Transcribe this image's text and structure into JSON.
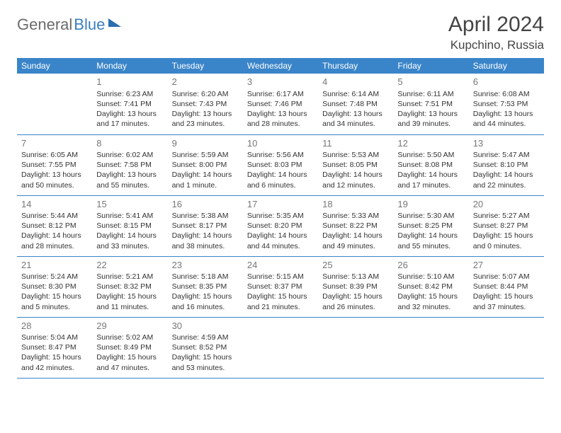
{
  "logo": {
    "part1": "General",
    "part2": "Blue"
  },
  "title": "April 2024",
  "location": "Kupchino, Russia",
  "colors": {
    "header_bg": "#3a85c9",
    "header_text": "#ffffff",
    "rule": "#3a85c9",
    "daynum": "#777777",
    "body_text": "#333333",
    "logo_gray": "#6b6b6b",
    "logo_blue": "#3a7fc2"
  },
  "day_headers": [
    "Sunday",
    "Monday",
    "Tuesday",
    "Wednesday",
    "Thursday",
    "Friday",
    "Saturday"
  ],
  "weeks": [
    [
      null,
      {
        "n": "1",
        "sr": "Sunrise: 6:23 AM",
        "ss": "Sunset: 7:41 PM",
        "dl": "Daylight: 13 hours and 17 minutes."
      },
      {
        "n": "2",
        "sr": "Sunrise: 6:20 AM",
        "ss": "Sunset: 7:43 PM",
        "dl": "Daylight: 13 hours and 23 minutes."
      },
      {
        "n": "3",
        "sr": "Sunrise: 6:17 AM",
        "ss": "Sunset: 7:46 PM",
        "dl": "Daylight: 13 hours and 28 minutes."
      },
      {
        "n": "4",
        "sr": "Sunrise: 6:14 AM",
        "ss": "Sunset: 7:48 PM",
        "dl": "Daylight: 13 hours and 34 minutes."
      },
      {
        "n": "5",
        "sr": "Sunrise: 6:11 AM",
        "ss": "Sunset: 7:51 PM",
        "dl": "Daylight: 13 hours and 39 minutes."
      },
      {
        "n": "6",
        "sr": "Sunrise: 6:08 AM",
        "ss": "Sunset: 7:53 PM",
        "dl": "Daylight: 13 hours and 44 minutes."
      }
    ],
    [
      {
        "n": "7",
        "sr": "Sunrise: 6:05 AM",
        "ss": "Sunset: 7:55 PM",
        "dl": "Daylight: 13 hours and 50 minutes."
      },
      {
        "n": "8",
        "sr": "Sunrise: 6:02 AM",
        "ss": "Sunset: 7:58 PM",
        "dl": "Daylight: 13 hours and 55 minutes."
      },
      {
        "n": "9",
        "sr": "Sunrise: 5:59 AM",
        "ss": "Sunset: 8:00 PM",
        "dl": "Daylight: 14 hours and 1 minute."
      },
      {
        "n": "10",
        "sr": "Sunrise: 5:56 AM",
        "ss": "Sunset: 8:03 PM",
        "dl": "Daylight: 14 hours and 6 minutes."
      },
      {
        "n": "11",
        "sr": "Sunrise: 5:53 AM",
        "ss": "Sunset: 8:05 PM",
        "dl": "Daylight: 14 hours and 12 minutes."
      },
      {
        "n": "12",
        "sr": "Sunrise: 5:50 AM",
        "ss": "Sunset: 8:08 PM",
        "dl": "Daylight: 14 hours and 17 minutes."
      },
      {
        "n": "13",
        "sr": "Sunrise: 5:47 AM",
        "ss": "Sunset: 8:10 PM",
        "dl": "Daylight: 14 hours and 22 minutes."
      }
    ],
    [
      {
        "n": "14",
        "sr": "Sunrise: 5:44 AM",
        "ss": "Sunset: 8:12 PM",
        "dl": "Daylight: 14 hours and 28 minutes."
      },
      {
        "n": "15",
        "sr": "Sunrise: 5:41 AM",
        "ss": "Sunset: 8:15 PM",
        "dl": "Daylight: 14 hours and 33 minutes."
      },
      {
        "n": "16",
        "sr": "Sunrise: 5:38 AM",
        "ss": "Sunset: 8:17 PM",
        "dl": "Daylight: 14 hours and 38 minutes."
      },
      {
        "n": "17",
        "sr": "Sunrise: 5:35 AM",
        "ss": "Sunset: 8:20 PM",
        "dl": "Daylight: 14 hours and 44 minutes."
      },
      {
        "n": "18",
        "sr": "Sunrise: 5:33 AM",
        "ss": "Sunset: 8:22 PM",
        "dl": "Daylight: 14 hours and 49 minutes."
      },
      {
        "n": "19",
        "sr": "Sunrise: 5:30 AM",
        "ss": "Sunset: 8:25 PM",
        "dl": "Daylight: 14 hours and 55 minutes."
      },
      {
        "n": "20",
        "sr": "Sunrise: 5:27 AM",
        "ss": "Sunset: 8:27 PM",
        "dl": "Daylight: 15 hours and 0 minutes."
      }
    ],
    [
      {
        "n": "21",
        "sr": "Sunrise: 5:24 AM",
        "ss": "Sunset: 8:30 PM",
        "dl": "Daylight: 15 hours and 5 minutes."
      },
      {
        "n": "22",
        "sr": "Sunrise: 5:21 AM",
        "ss": "Sunset: 8:32 PM",
        "dl": "Daylight: 15 hours and 11 minutes."
      },
      {
        "n": "23",
        "sr": "Sunrise: 5:18 AM",
        "ss": "Sunset: 8:35 PM",
        "dl": "Daylight: 15 hours and 16 minutes."
      },
      {
        "n": "24",
        "sr": "Sunrise: 5:15 AM",
        "ss": "Sunset: 8:37 PM",
        "dl": "Daylight: 15 hours and 21 minutes."
      },
      {
        "n": "25",
        "sr": "Sunrise: 5:13 AM",
        "ss": "Sunset: 8:39 PM",
        "dl": "Daylight: 15 hours and 26 minutes."
      },
      {
        "n": "26",
        "sr": "Sunrise: 5:10 AM",
        "ss": "Sunset: 8:42 PM",
        "dl": "Daylight: 15 hours and 32 minutes."
      },
      {
        "n": "27",
        "sr": "Sunrise: 5:07 AM",
        "ss": "Sunset: 8:44 PM",
        "dl": "Daylight: 15 hours and 37 minutes."
      }
    ],
    [
      {
        "n": "28",
        "sr": "Sunrise: 5:04 AM",
        "ss": "Sunset: 8:47 PM",
        "dl": "Daylight: 15 hours and 42 minutes."
      },
      {
        "n": "29",
        "sr": "Sunrise: 5:02 AM",
        "ss": "Sunset: 8:49 PM",
        "dl": "Daylight: 15 hours and 47 minutes."
      },
      {
        "n": "30",
        "sr": "Sunrise: 4:59 AM",
        "ss": "Sunset: 8:52 PM",
        "dl": "Daylight: 15 hours and 53 minutes."
      },
      null,
      null,
      null,
      null
    ]
  ]
}
